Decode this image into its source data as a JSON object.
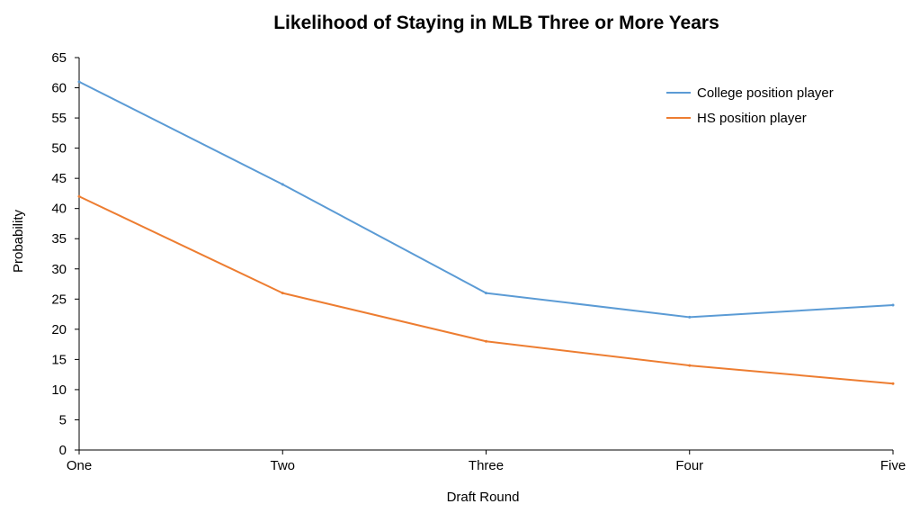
{
  "chart_data": {
    "type": "line",
    "title": "Likelihood of Staying in MLB Three or More Years",
    "xlabel": "Draft Round",
    "ylabel": "Probability",
    "categories": [
      "One",
      "Two",
      "Three",
      "Four",
      "Five"
    ],
    "ylim": [
      0,
      65
    ],
    "yticks": [
      "0",
      "5",
      "10",
      "15",
      "20",
      "25",
      "30",
      "35",
      "40",
      "45",
      "50",
      "55",
      "60",
      "65"
    ],
    "grid": false,
    "legend_position": "top-right",
    "series": [
      {
        "name": "College position player",
        "color": "#5B9BD5",
        "values": [
          61,
          44,
          26,
          22,
          24
        ]
      },
      {
        "name": "HS position player",
        "color": "#ED7D31",
        "values": [
          42,
          26,
          18,
          14,
          11
        ]
      }
    ]
  }
}
